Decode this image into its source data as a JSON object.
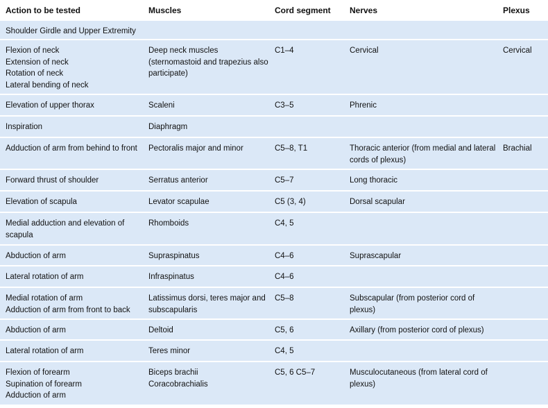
{
  "table": {
    "header": [
      "Action to be tested",
      "Muscles",
      "Cord segment",
      "Nerves",
      "Plexus"
    ],
    "section": "Shoulder Girdle and Upper Extremity",
    "rows": [
      [
        [
          "Flexion of neck",
          "Extension of neck",
          "Rotation of neck",
          "Lateral bending of neck"
        ],
        "Deep neck muscles (sternomastoid and trapezius also participate)",
        "C1–4",
        "Cervical",
        "Cervical"
      ],
      [
        "Elevation of upper thorax",
        "Scaleni",
        "C3–5",
        "Phrenic",
        ""
      ],
      [
        "Inspiration",
        "Diaphragm",
        "",
        "",
        ""
      ],
      [
        "Adduction of arm from behind to front",
        "Pectoralis major and minor",
        "C5–8, T1",
        "Thoracic anterior (from medial and lateral cords of plexus)",
        "Brachial"
      ],
      [
        "Forward thrust of shoulder",
        "Serratus anterior",
        "C5–7",
        "Long thoracic",
        ""
      ],
      [
        "Elevation of scapula",
        "Levator scapulae",
        "C5 (3, 4)",
        "Dorsal scapular",
        ""
      ],
      [
        "Medial adduction and elevation of scapula",
        "Rhomboids",
        "C4, 5",
        "",
        ""
      ],
      [
        "Abduction of arm",
        "Supraspinatus",
        "C4–6",
        "Suprascapular",
        ""
      ],
      [
        "Lateral rotation of arm",
        "Infraspinatus",
        "C4–6",
        "",
        ""
      ],
      [
        [
          "Medial rotation of arm",
          "Adduction of arm from front to back"
        ],
        "Latissimus dorsi, teres major and subscapularis",
        "C5–8",
        "Subscapular (from posterior cord of plexus)",
        ""
      ],
      [
        "Abduction of arm",
        "Deltoid",
        "C5, 6",
        "Axillary (from posterior cord of plexus)",
        ""
      ],
      [
        "Lateral rotation of arm",
        "Teres minor",
        "C4, 5",
        "",
        ""
      ],
      [
        [
          "Flexion of forearm",
          "Supination of forearm",
          "Adduction of arm"
        ],
        [
          "Biceps brachii",
          "Coracobrachialis"
        ],
        "C5, 6 C5–7",
        "Musculocutaneous (from lateral cord of plexus)",
        ""
      ]
    ]
  }
}
